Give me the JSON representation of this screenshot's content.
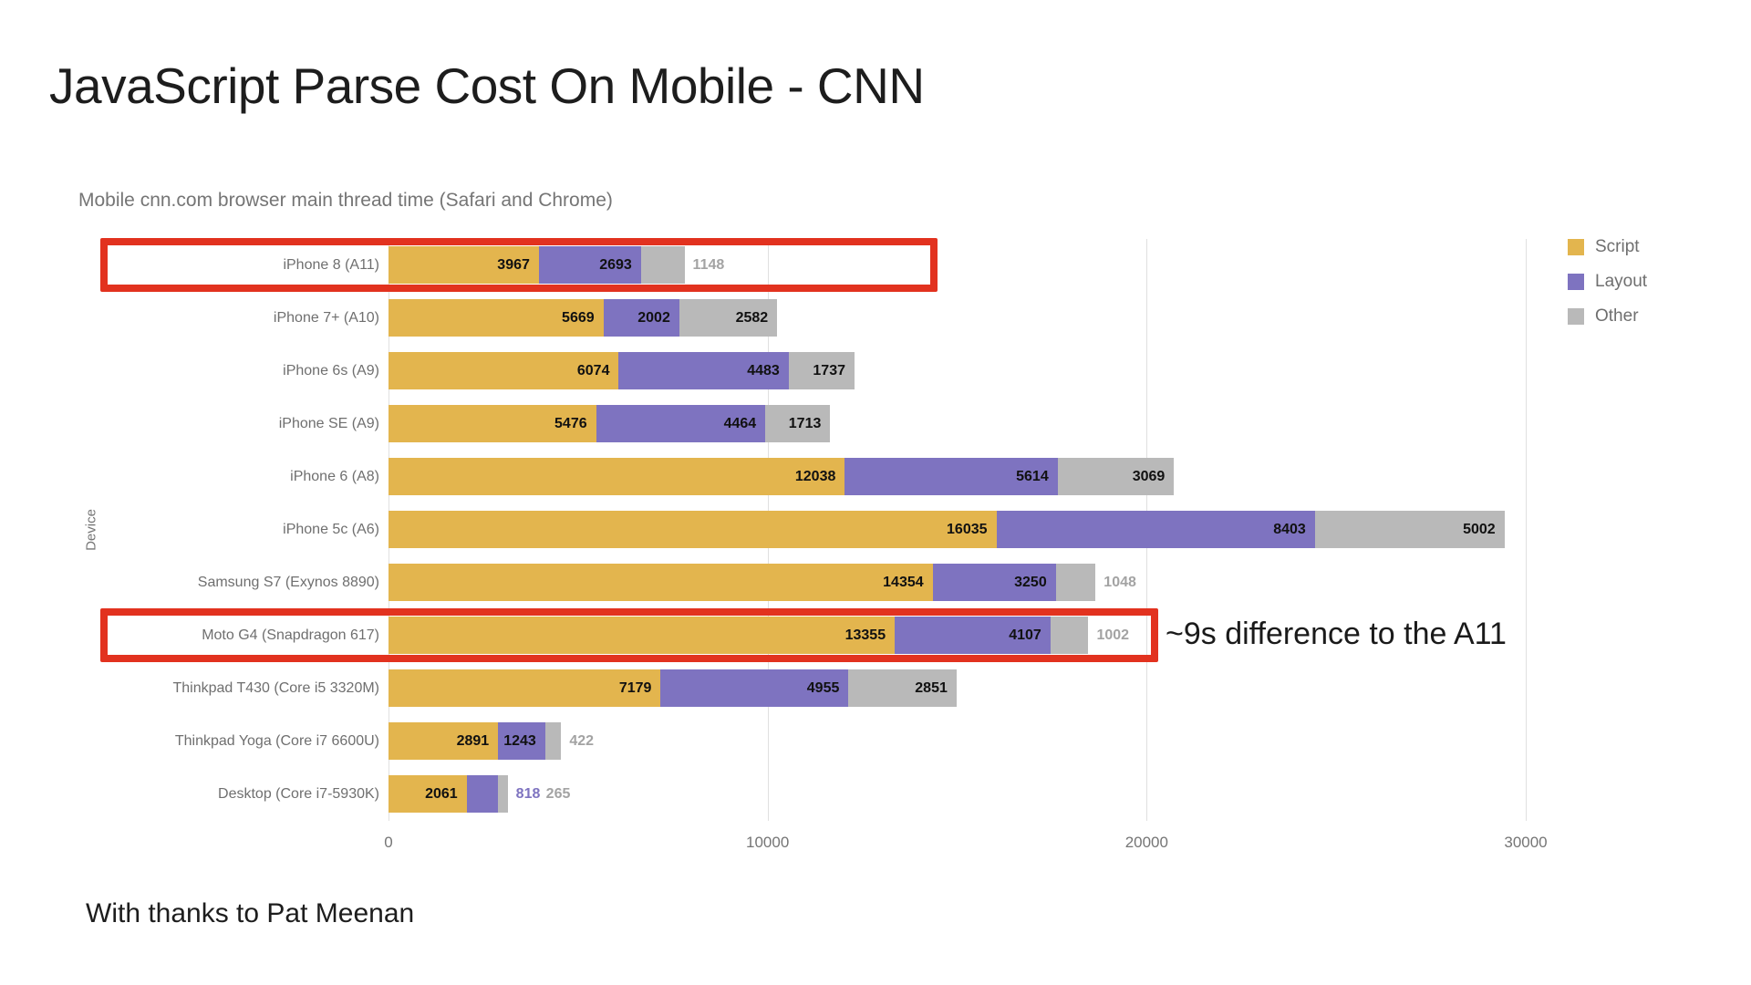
{
  "title": "JavaScript Parse Cost On Mobile - CNN",
  "subtitle": "Mobile cnn.com browser main thread time (Safari and Chrome)",
  "footer": "With thanks to Pat Meenan",
  "chart_data": {
    "type": "bar",
    "orientation": "horizontal",
    "stacked": true,
    "title": "JavaScript Parse Cost On Mobile - CNN",
    "subtitle": "Mobile cnn.com browser main thread time (Safari and Chrome)",
    "ylabel": "Device",
    "xlim": [
      0,
      30600
    ],
    "x_ticks": [
      0,
      10000,
      20000,
      30000
    ],
    "x_tick_labels": [
      "0",
      "10000",
      "20000",
      "30000"
    ],
    "grid": true,
    "grid_color": "#e0e0e0",
    "legend_position": "top-right",
    "legend": [
      "Script",
      "Layout",
      "Other"
    ],
    "series_colors": {
      "Script": "#e3b54e",
      "Layout": "#7e73c0",
      "Other": "#b9b9b9"
    },
    "outside_label_colors": {
      "Script": "#c9a23c",
      "Layout": "#7e73c0",
      "Other": "#a3a3a3"
    },
    "categories": [
      "iPhone 8 (A11)",
      "iPhone 7+ (A10)",
      "iPhone 6s (A9)",
      "iPhone SE (A9)",
      "iPhone 6 (A8)",
      "iPhone 5c (A6)",
      "Samsung S7 (Exynos 8890)",
      "Moto G4 (Snapdragon 617)",
      "Thinkpad T430 (Core i5 3320M)",
      "Thinkpad Yoga (Core i7 6600U)",
      "Desktop (Core i7-5930K)"
    ],
    "series": [
      {
        "name": "Script",
        "values": [
          3967,
          5669,
          6074,
          5476,
          12038,
          16035,
          14354,
          13355,
          7179,
          2891,
          2061
        ]
      },
      {
        "name": "Layout",
        "values": [
          2693,
          2002,
          4483,
          4464,
          5614,
          8403,
          3250,
          4107,
          4955,
          1243,
          818
        ]
      },
      {
        "name": "Other",
        "values": [
          1148,
          2582,
          1737,
          1713,
          3069,
          5002,
          1048,
          1002,
          2851,
          422,
          265
        ]
      }
    ],
    "annotations": {
      "highlight_color": "#e2321f",
      "highlighted_rows": [
        "iPhone 8 (A11)",
        "Moto G4 (Snapdragon 617)"
      ],
      "note": {
        "text": "~9s difference to the A11",
        "row": "Moto G4 (Snapdragon 617)"
      }
    }
  }
}
